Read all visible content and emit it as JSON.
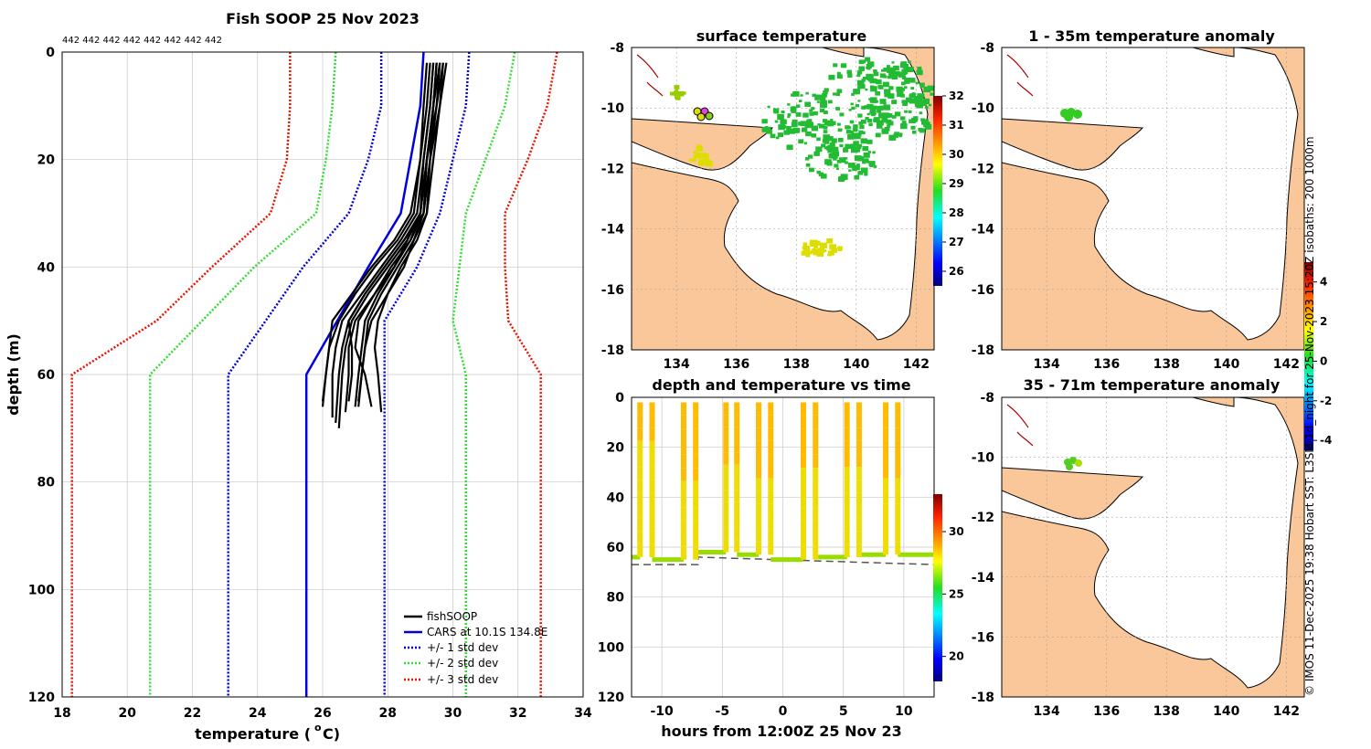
{
  "figure": {
    "copyright": "© IMOS 11-Dec-2025 19:38 Hobart SST: L3SM-1d_night for 25-Nov-2023 15:20Z isobaths: 200  1000m",
    "colors": {
      "land": "#f9c79a",
      "coast": "#000000",
      "grid": "#c8c8c8",
      "fish": "#000000",
      "cars": "#0000dd",
      "std1": "#0000dd",
      "std2": "#33dd33",
      "std3": "#ee1100",
      "sst_green": "#22bb33",
      "sst_yellow": "#dddd00"
    }
  },
  "chart_data": [
    {
      "id": "profile",
      "type": "line",
      "title": "Fish SOOP 25 Nov 2023",
      "xlabel": "temperature (",
      "xlabel_sup": "o",
      "xlabel_end": "C)",
      "ylabel": "depth (m)",
      "xlim": [
        18,
        34
      ],
      "ylim": [
        120,
        0
      ],
      "xticks": [
        "18",
        "20",
        "22",
        "24",
        "26",
        "28",
        "30",
        "32",
        "34"
      ],
      "yticks": [
        "0",
        "20",
        "40",
        "60",
        "80",
        "100",
        "120"
      ],
      "top_annotation": "442 442 442 442 442 442 442 442",
      "legend": {
        "placement": "bottom-right",
        "entries": [
          "fishSOOP",
          "CARS at 10.1S 134.8E",
          "+/- 1 std dev",
          "+/- 2 std dev",
          "+/- 3 std dev"
        ]
      },
      "cars": {
        "temp": [
          29.1,
          29.0,
          28.7,
          28.4,
          27.4,
          25.5,
          25.5
        ],
        "depth": [
          0,
          10,
          20,
          30,
          40,
          60,
          120
        ]
      },
      "std1_left": {
        "temp": [
          27.8,
          27.8,
          27.4,
          26.8,
          25.4,
          23.1,
          23.1
        ],
        "depth": [
          0,
          10,
          20,
          30,
          40,
          60,
          120
        ]
      },
      "std1_right": {
        "temp": [
          30.5,
          30.4,
          30.0,
          29.6,
          28.9,
          27.9,
          27.9
        ],
        "depth": [
          0,
          10,
          20,
          30,
          40,
          50,
          120
        ]
      },
      "std2_left": {
        "temp": [
          26.4,
          26.3,
          26.1,
          25.8,
          23.9,
          20.7,
          20.7
        ],
        "depth": [
          0,
          10,
          20,
          30,
          40,
          60,
          120
        ]
      },
      "std2_right": {
        "temp": [
          31.9,
          31.6,
          31.0,
          30.4,
          30.2,
          30.0,
          30.4,
          30.4
        ],
        "depth": [
          0,
          10,
          20,
          30,
          40,
          50,
          60,
          120
        ]
      },
      "std3_left": {
        "temp": [
          25.0,
          25.0,
          24.9,
          24.4,
          22.6,
          20.9,
          18.3,
          18.3
        ],
        "depth": [
          0,
          10,
          20,
          30,
          40,
          50,
          60,
          120
        ]
      },
      "std3_right": {
        "temp": [
          33.2,
          32.9,
          32.3,
          31.6,
          31.6,
          31.7,
          32.7,
          32.7
        ],
        "depth": [
          0,
          10,
          20,
          30,
          40,
          50,
          60,
          120
        ]
      },
      "fish_profiles": [
        {
          "temp": [
            29.5,
            29.4,
            29.2,
            29.1,
            28.8,
            28.5,
            28.0,
            27.5,
            27.3,
            27.2,
            27.1
          ],
          "depth": [
            2,
            10,
            20,
            30,
            35,
            40,
            45,
            50,
            55,
            60,
            65
          ]
        },
        {
          "temp": [
            29.6,
            29.5,
            29.2,
            29.0,
            28.6,
            28.2,
            27.7,
            27.3,
            27.2,
            27.1,
            27.0
          ],
          "depth": [
            2,
            10,
            20,
            30,
            35,
            40,
            45,
            50,
            55,
            60,
            66
          ]
        },
        {
          "temp": [
            29.7,
            29.5,
            29.3,
            29.1,
            28.7,
            28.1,
            27.6,
            27.0,
            26.8,
            26.8,
            26.7
          ],
          "depth": [
            2,
            10,
            20,
            30,
            35,
            40,
            45,
            50,
            55,
            60,
            67
          ]
        },
        {
          "temp": [
            29.4,
            29.3,
            29.1,
            28.9,
            28.4,
            27.8,
            27.2,
            26.6,
            26.4,
            26.3,
            26.3
          ],
          "depth": [
            2,
            10,
            20,
            30,
            35,
            40,
            45,
            50,
            55,
            60,
            68
          ]
        },
        {
          "temp": [
            29.8,
            29.6,
            29.4,
            29.2,
            28.8,
            28.3,
            27.8,
            27.4,
            27.3,
            27.2,
            27.1
          ],
          "depth": [
            2,
            10,
            20,
            30,
            35,
            40,
            45,
            50,
            55,
            60,
            66
          ]
        },
        {
          "temp": [
            29.3,
            29.2,
            29.0,
            28.8,
            28.3,
            27.6,
            27.0,
            26.5,
            26.2,
            26.1,
            26.0
          ],
          "depth": [
            2,
            10,
            20,
            30,
            35,
            40,
            45,
            50,
            55,
            60,
            65
          ]
        },
        {
          "temp": [
            29.5,
            29.4,
            29.2,
            29.0,
            28.6,
            28.0,
            27.4,
            26.9,
            26.7,
            26.6,
            26.5
          ],
          "depth": [
            2,
            10,
            20,
            30,
            35,
            40,
            45,
            50,
            55,
            60,
            70
          ]
        },
        {
          "temp": [
            29.6,
            29.4,
            29.3,
            29.1,
            28.5,
            27.9,
            27.3,
            26.8,
            26.6,
            26.5,
            26.4
          ],
          "depth": [
            2,
            10,
            20,
            30,
            35,
            40,
            45,
            50,
            55,
            60,
            69
          ]
        },
        {
          "temp": [
            29.2,
            29.1,
            29.0,
            28.7,
            28.2,
            27.5,
            26.9,
            26.3,
            26.2,
            26.1,
            26.0
          ],
          "depth": [
            2,
            10,
            20,
            30,
            35,
            40,
            45,
            50,
            55,
            60,
            66
          ]
        },
        {
          "temp": [
            29.7,
            29.6,
            29.3,
            29.2,
            28.9,
            28.4,
            28.0,
            27.7,
            27.6,
            27.7,
            27.8
          ],
          "depth": [
            2,
            10,
            20,
            30,
            35,
            40,
            45,
            50,
            55,
            60,
            67
          ]
        },
        {
          "temp": [
            29.4,
            29.3,
            29.1,
            29.0,
            28.5,
            27.9,
            27.3,
            26.8,
            26.9,
            26.9,
            26.8
          ],
          "depth": [
            2,
            10,
            20,
            30,
            35,
            40,
            45,
            50,
            55,
            60,
            65
          ]
        },
        {
          "temp": [
            29.5,
            29.4,
            29.2,
            29.0,
            28.7,
            28.2,
            27.6,
            27.1,
            27.0,
            27.3,
            27.5
          ],
          "depth": [
            2,
            10,
            20,
            30,
            35,
            40,
            45,
            50,
            55,
            60,
            66
          ]
        }
      ]
    },
    {
      "id": "sst",
      "type": "heatmap",
      "title": "surface temperature",
      "xlim": [
        132.5,
        142.6
      ],
      "ylim": [
        -18,
        -8
      ],
      "xticks": [
        "134",
        "136",
        "138",
        "140",
        "142"
      ],
      "yticks": [
        "-8",
        "-10",
        "-12",
        "-14",
        "-16",
        "-18"
      ],
      "colorbar": {
        "range": [
          25.5,
          32
        ],
        "ticks": [
          "26",
          "27",
          "28",
          "29",
          "30",
          "31",
          "32"
        ]
      }
    },
    {
      "id": "timeseries",
      "type": "scatter",
      "title": "depth and temperature vs time",
      "xlabel": "hours from 12:00Z 25 Nov 23",
      "xlim": [
        -12.5,
        12.5
      ],
      "ylim": [
        120,
        0
      ],
      "xticks": [
        "-10",
        "-5",
        "0",
        "5",
        "10"
      ],
      "yticks": [
        "0",
        "20",
        "40",
        "60",
        "80",
        "100",
        "120"
      ],
      "colorbar": {
        "range": [
          18,
          33
        ],
        "ticks": [
          "20",
          "25",
          "30"
        ]
      },
      "dives": [
        {
          "down": -11.8,
          "up": -10.8,
          "bottom": 64,
          "surface_temp": 29.8
        },
        {
          "down": -8.2,
          "up": -7.2,
          "bottom": 65,
          "surface_temp": 30.2
        },
        {
          "down": -4.7,
          "up": -3.8,
          "bottom": 62,
          "surface_temp": 30.1
        },
        {
          "down": -2.0,
          "up": -1.0,
          "bottom": 63,
          "surface_temp": 30.4
        },
        {
          "down": 1.7,
          "up": 2.7,
          "bottom": 65,
          "surface_temp": 30.1
        },
        {
          "down": 5.3,
          "up": 6.3,
          "bottom": 64,
          "surface_temp": 30.0
        },
        {
          "down": 8.5,
          "up": 9.5,
          "bottom": 63,
          "surface_temp": 30.3
        }
      ],
      "bottom_temp": 27.5,
      "bathymetry": {
        "x": [
          -12.5,
          -7.0,
          -7.0,
          12.5
        ],
        "y": [
          67,
          67,
          64,
          67
        ]
      }
    },
    {
      "id": "anom1",
      "type": "heatmap",
      "title": "1 - 35m temperature anomaly",
      "xlim": [
        132.5,
        142.6
      ],
      "ylim": [
        -18,
        -8
      ],
      "xticks": [
        "134",
        "136",
        "138",
        "140",
        "142"
      ],
      "yticks": [
        "-8",
        "-10",
        "-12",
        "-14",
        "-16",
        "-18"
      ]
    },
    {
      "id": "anom2",
      "type": "heatmap",
      "title": "35 - 71m temperature anomaly",
      "xlim": [
        132.5,
        142.6
      ],
      "ylim": [
        -18,
        -8
      ],
      "xticks": [
        "134",
        "136",
        "138",
        "140",
        "142"
      ],
      "yticks": [
        "-8",
        "-10",
        "-12",
        "-14",
        "-16",
        "-18"
      ],
      "colorbar": {
        "range": [
          -4.5,
          5
        ],
        "ticks": [
          "4",
          "2",
          "0",
          "-2",
          "-4"
        ]
      }
    }
  ]
}
